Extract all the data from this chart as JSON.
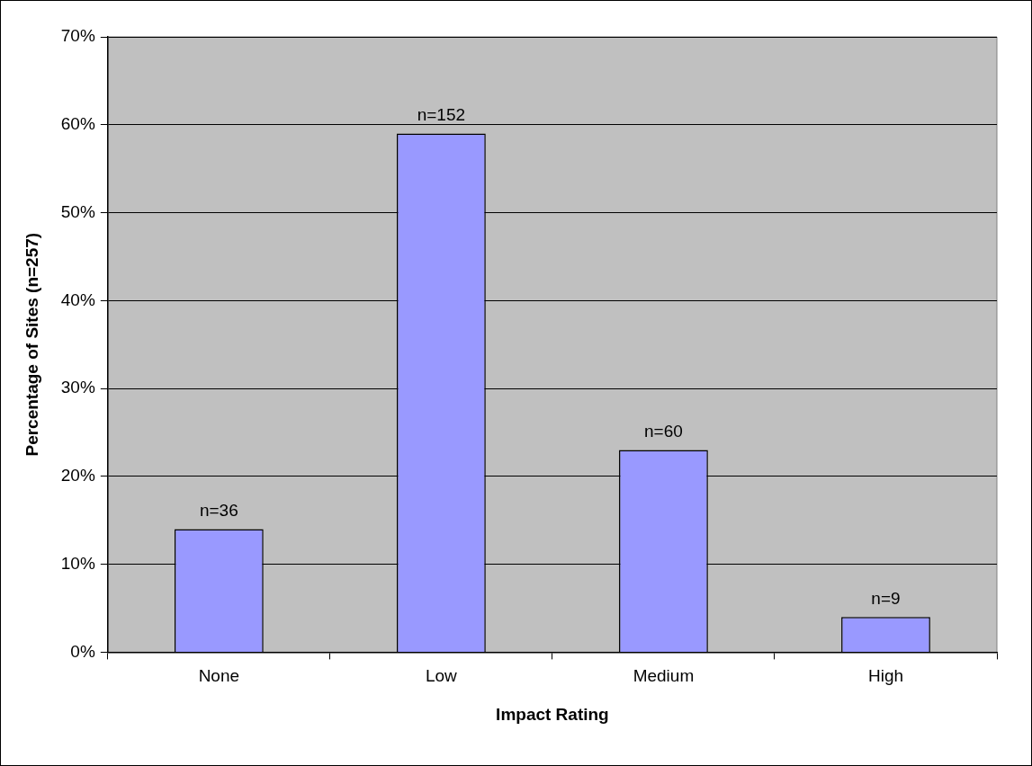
{
  "chart_data": {
    "type": "bar",
    "xlabel": "Impact Rating",
    "ylabel": "Percentage of Sites (n=257)",
    "categories": [
      "None",
      "Low",
      "Medium",
      "High"
    ],
    "values": [
      14,
      59,
      23,
      4
    ],
    "annotations": [
      {
        "text": "n=36",
        "x": "None",
        "y": 14
      },
      {
        "text": "n=152",
        "x": "Low",
        "y": 59
      },
      {
        "text": "n=60",
        "x": "Medium",
        "y": 23
      },
      {
        "text": "n=9",
        "x": "High",
        "y": 4
      }
    ],
    "color": "#9999ff",
    "ylim": [
      0,
      70
    ],
    "yticks": [
      {
        "value": 0,
        "label": "0%"
      },
      {
        "value": 10,
        "label": "10%"
      },
      {
        "value": 20,
        "label": "20%"
      },
      {
        "value": 30,
        "label": "30%"
      },
      {
        "value": 40,
        "label": "40%"
      },
      {
        "value": 50,
        "label": "50%"
      },
      {
        "value": 60,
        "label": "60%"
      },
      {
        "value": 70,
        "label": "70%"
      }
    ],
    "grid": "y",
    "legend": false
  }
}
